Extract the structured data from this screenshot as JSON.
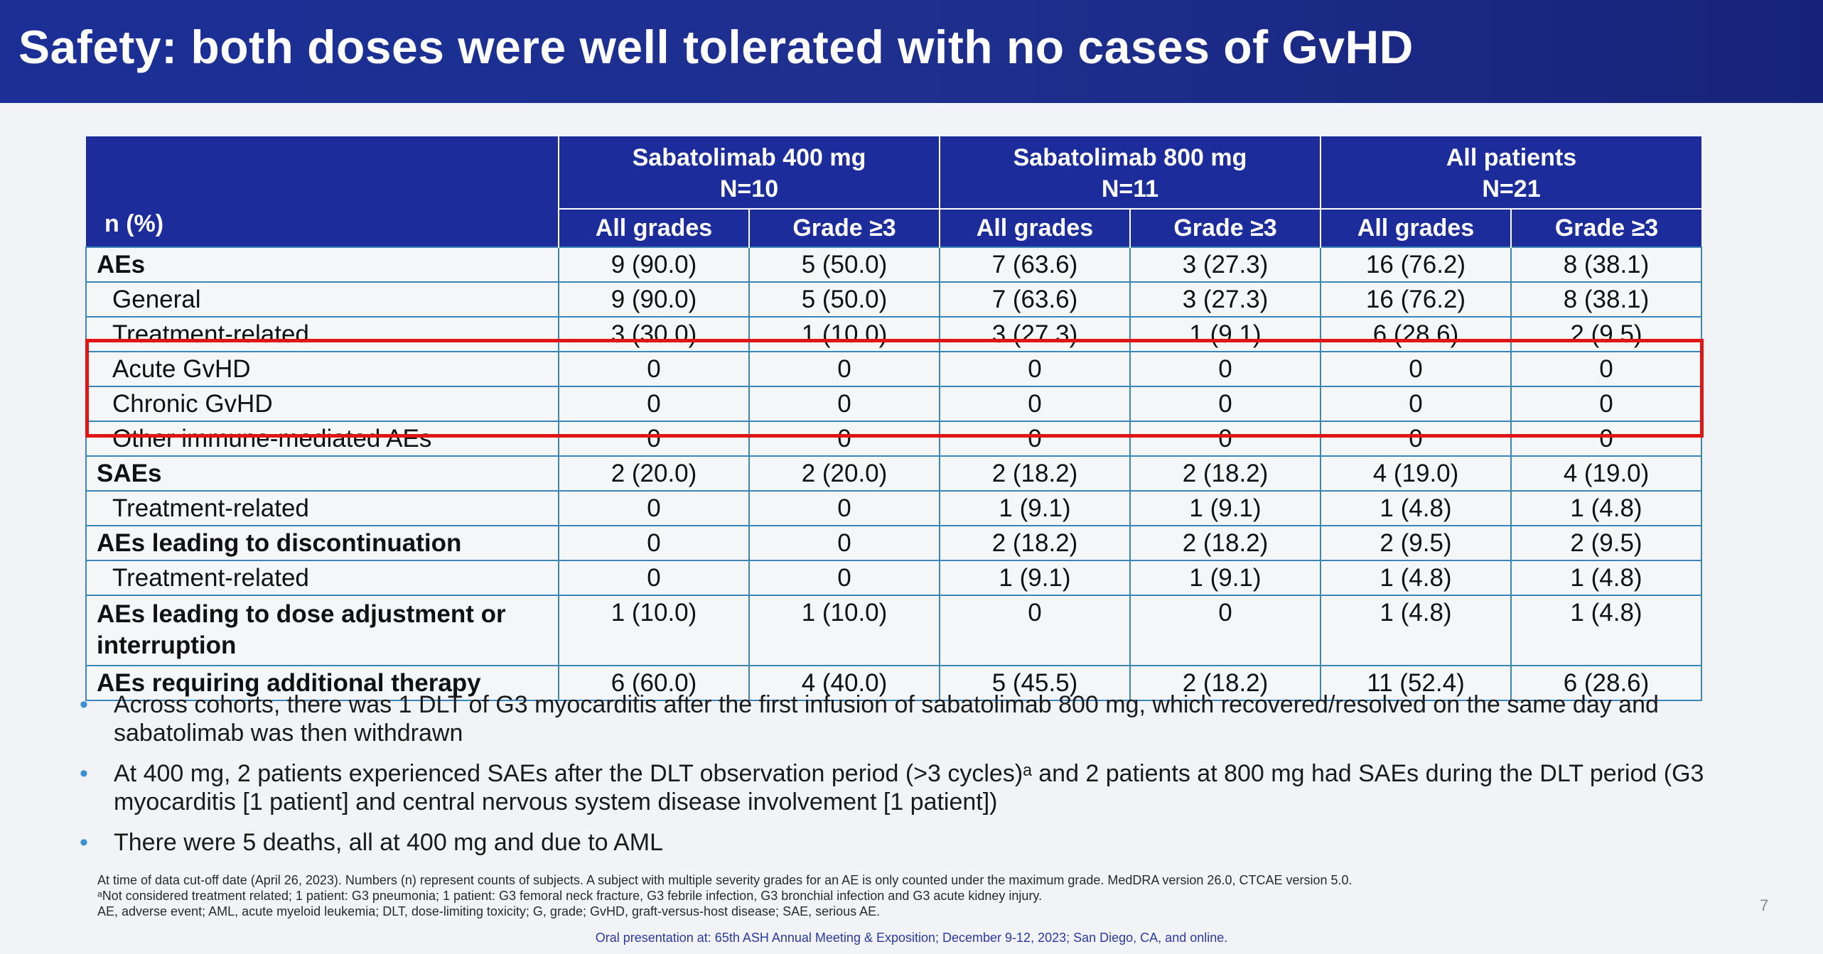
{
  "title": "Safety: both doses were well tolerated with no cases of GvHD",
  "table": {
    "corner_label": "n (%)",
    "groups": [
      {
        "name": "Sabatolimab 400 mg",
        "n": "N=10"
      },
      {
        "name": "Sabatolimab 800 mg",
        "n": "N=11"
      },
      {
        "name": "All patients",
        "n": "N=21"
      }
    ],
    "subheaders": [
      "All grades",
      "Grade ≥3",
      "All grades",
      "Grade ≥3",
      "All grades",
      "Grade ≥3"
    ],
    "rows": [
      {
        "label": "AEs",
        "values": [
          "9 (90.0)",
          "5 (50.0)",
          "7 (63.6)",
          "3 (27.3)",
          "16 (76.2)",
          "8 (38.1)"
        ]
      },
      {
        "label": "General",
        "values": [
          "9 (90.0)",
          "5 (50.0)",
          "7 (63.6)",
          "3 (27.3)",
          "16 (76.2)",
          "8 (38.1)"
        ]
      },
      {
        "label": "Treatment-related",
        "values": [
          "3 (30.0)",
          "1 (10.0)",
          "3 (27.3)",
          "1 (9.1)",
          "6 (28.6)",
          "2 (9.5)"
        ]
      },
      {
        "label": "Acute GvHD",
        "values": [
          "0",
          "0",
          "0",
          "0",
          "0",
          "0"
        ]
      },
      {
        "label": "Chronic GvHD",
        "values": [
          "0",
          "0",
          "0",
          "0",
          "0",
          "0"
        ]
      },
      {
        "label": "Other immune-mediated AEs",
        "values": [
          "0",
          "0",
          "0",
          "0",
          "0",
          "0"
        ]
      },
      {
        "label": "SAEs",
        "values": [
          "2 (20.0)",
          "2 (20.0)",
          "2 (18.2)",
          "2 (18.2)",
          "4 (19.0)",
          "4 (19.0)"
        ]
      },
      {
        "label": "Treatment-related",
        "values": [
          "0",
          "0",
          "1 (9.1)",
          "1 (9.1)",
          "1 (4.8)",
          "1 (4.8)"
        ]
      },
      {
        "label": "AEs leading to discontinuation",
        "values": [
          "0",
          "0",
          "2 (18.2)",
          "2 (18.2)",
          "2 (9.5)",
          "2 (9.5)"
        ]
      },
      {
        "label": "Treatment-related",
        "values": [
          "0",
          "0",
          "1 (9.1)",
          "1 (9.1)",
          "1 (4.8)",
          "1 (4.8)"
        ]
      },
      {
        "label": "AEs leading to dose adjustment or interruption",
        "values": [
          "1 (10.0)",
          "1 (10.0)",
          "0",
          "0",
          "1 (4.8)",
          "1 (4.8)"
        ]
      },
      {
        "label": "AEs requiring additional therapy",
        "values": [
          "6 (60.0)",
          "4 (40.0)",
          "5 (45.5)",
          "2 (18.2)",
          "11 (52.4)",
          "6 (28.6)"
        ]
      }
    ]
  },
  "bullets": [
    "Across cohorts, there was 1 DLT of G3 myocarditis after the first infusion of sabatolimab 800 mg, which recovered/resolved on the same day and sabatolimab was then withdrawn",
    "At 400 mg, 2 patients experienced SAEs after the DLT observation period (>3 cycles)ᵃ and 2 patients at 800 mg had SAEs during the DLT period (G3 myocarditis [1 patient] and central nervous system disease involvement [1 patient])",
    "There were 5 deaths, all at 400 mg and due to AML"
  ],
  "bullet_glyph": "•",
  "footnotes": [
    "At time of data cut-off date (April 26, 2023). Numbers (n) represent counts of subjects. A subject with multiple severity grades for an AE is only counted under the maximum grade. MedDRA version 26.0, CTCAE version 5.0.",
    "ᵃNot considered treatment related; 1 patient: G3 pneumonia; 1 patient: G3 femoral neck fracture, G3 febrile infection, G3 bronchial infection and G3 acute kidney injury.",
    "AE, adverse event; AML, acute myeloid leukemia; DLT, dose-limiting toxicity; G, grade; GvHD, graft-versus-host disease; SAE, serious AE."
  ],
  "conference": "Oral presentation at: 65th ASH Annual Meeting & Exposition; December 9-12, 2023; San Diego, CA, and online.",
  "page_number": "7",
  "colors": {
    "header_blue": "#1c2c9a",
    "highlight_red": "#e01616",
    "grid_blue": "#3b86b8"
  }
}
